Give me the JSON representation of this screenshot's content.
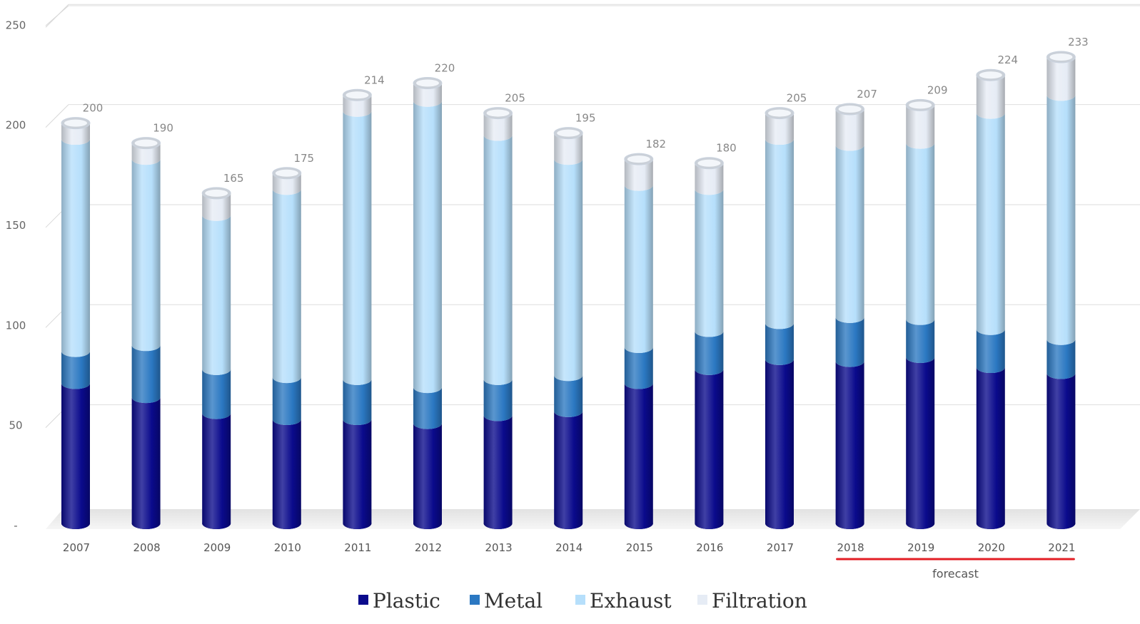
{
  "chart_data": {
    "type": "bar",
    "stacked": true,
    "categories": [
      "2007",
      "2008",
      "2009",
      "2010",
      "2011",
      "2012",
      "2013",
      "2014",
      "2015",
      "2016",
      "2017",
      "2018",
      "2019",
      "2020",
      "2021"
    ],
    "series": [
      {
        "name": "Plastic",
        "color": "#0a0a8c",
        "values": [
          70,
          63,
          55,
          52,
          52,
          50,
          54,
          56,
          70,
          77,
          82,
          81,
          83,
          78,
          75
        ]
      },
      {
        "name": "Metal",
        "color": "#2b78c2",
        "values": [
          16,
          26,
          22,
          21,
          20,
          18,
          18,
          18,
          18,
          19,
          18,
          22,
          19,
          19,
          17
        ]
      },
      {
        "name": "Exhaust",
        "color": "#b6dffb",
        "values": [
          106,
          93,
          77,
          94,
          134,
          143,
          122,
          108,
          81,
          71,
          92,
          86,
          88,
          108,
          122
        ]
      },
      {
        "name": "Filtration",
        "color": "#e6ecf5",
        "values": [
          8,
          8,
          11,
          8,
          8,
          9,
          11,
          13,
          13,
          13,
          13,
          18,
          19,
          19,
          19
        ]
      }
    ],
    "totals": [
      "200",
      "190",
      "165",
      "175",
      "214",
      "220",
      "205",
      "195",
      "182",
      "180",
      "205",
      "207",
      "209",
      "224",
      "233"
    ],
    "y_ticks": [
      "-",
      "50",
      "100",
      "150",
      "200",
      "250"
    ],
    "ylim": [
      0,
      250
    ],
    "grid": true,
    "legend_position": "bottom",
    "forecast": {
      "label": "forecast",
      "from": "2018",
      "to": "2021",
      "color": "#e31e24"
    }
  }
}
